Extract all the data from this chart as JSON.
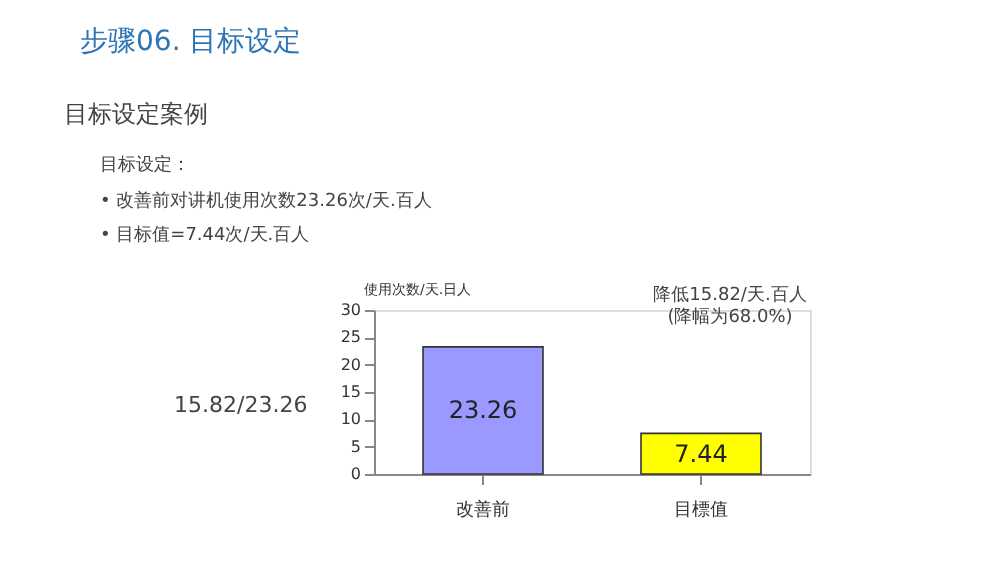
{
  "chart_data": {
    "type": "bar",
    "title": "步骤06.  目标设定",
    "subtitle": "目标设定案例",
    "ylabel": "使用次数/天.日人",
    "categories": [
      "改善前",
      "目標值"
    ],
    "values": [
      23.26,
      7.44
    ],
    "colors": [
      "#9999ff",
      "#ffff00"
    ],
    "ylim": [
      0,
      30
    ],
    "yticks": [
      0,
      5,
      10,
      15,
      20,
      25,
      30
    ],
    "data_labels": true,
    "annotations": [
      "目标设定：",
      "•  改善前对讲机使用次数23.26次/天.百人",
      "•  目标值=7.44次/天.百人",
      "15.82/23.26",
      "降低15.82/天.百人\n(降幅为68.0%)"
    ]
  }
}
